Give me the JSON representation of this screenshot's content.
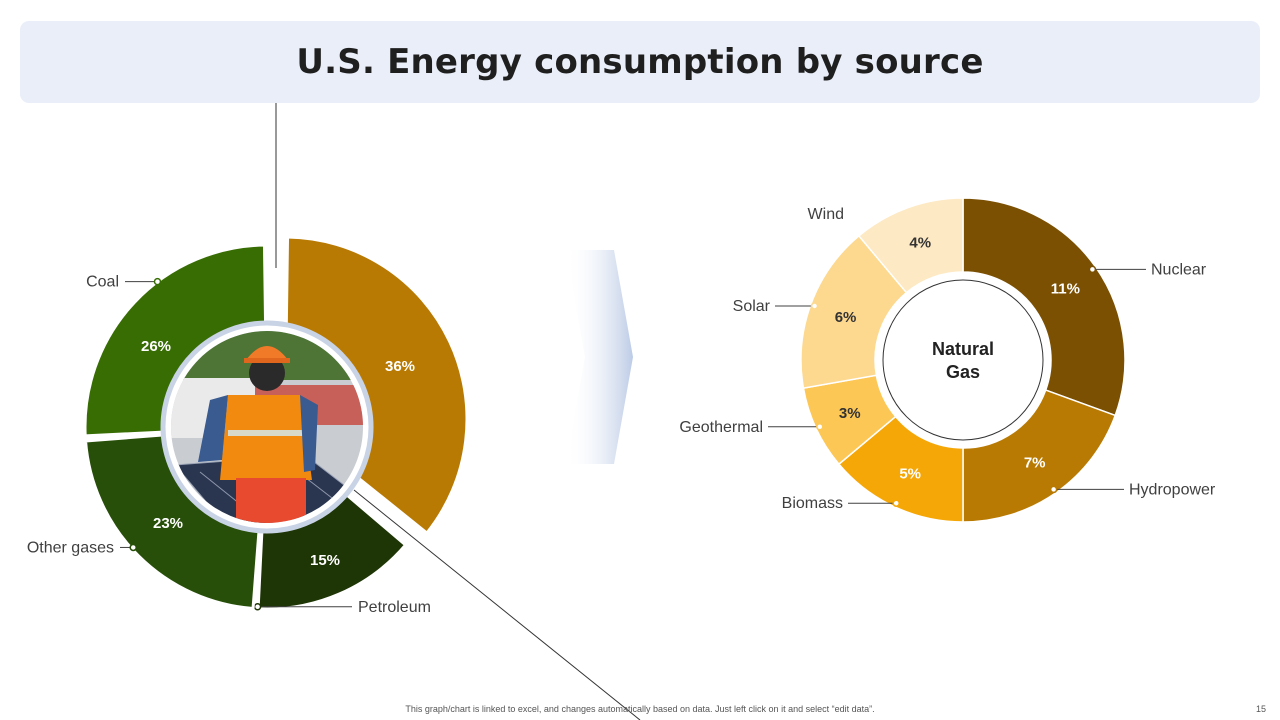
{
  "title": "U.S. Energy consumption by source",
  "footnote": "This graph/chart is linked to excel, and changes automatically based on data. Just left click on it and select “edit data”.",
  "page_number": "15",
  "chart_data": [
    {
      "type": "pie",
      "subtype": "donut",
      "title": "",
      "categories": [
        "Natural Gas",
        "Petroleum",
        "Other gases",
        "Coal"
      ],
      "values": [
        36,
        15,
        23,
        26
      ],
      "value_labels": [
        "36%",
        "15%",
        "23%",
        "26%"
      ],
      "colors": [
        "#b97a03",
        "#1e3506",
        "#274f09",
        "#386d04"
      ],
      "label_text": [
        "",
        "Petroleum",
        "Other gases",
        "Coal"
      ],
      "center_content": "photo-of-worker-installing-solar-panel",
      "exploded_slice": "Natural Gas"
    },
    {
      "type": "pie",
      "subtype": "donut",
      "title": "Natural Gas",
      "categories": [
        "Nuclear",
        "Hydropower",
        "Biomass",
        "Geothermal",
        "Solar",
        "Wind"
      ],
      "values": [
        11,
        7,
        5,
        3,
        6,
        4
      ],
      "value_labels": [
        "11%",
        "7%",
        "5%",
        "3%",
        "6%",
        "4%"
      ],
      "colors": [
        "#7b5003",
        "#b97a03",
        "#f5a707",
        "#fcc754",
        "#fdd88f",
        "#fde9c3"
      ],
      "center_label_lines": [
        "Natural",
        "Gas"
      ]
    }
  ]
}
